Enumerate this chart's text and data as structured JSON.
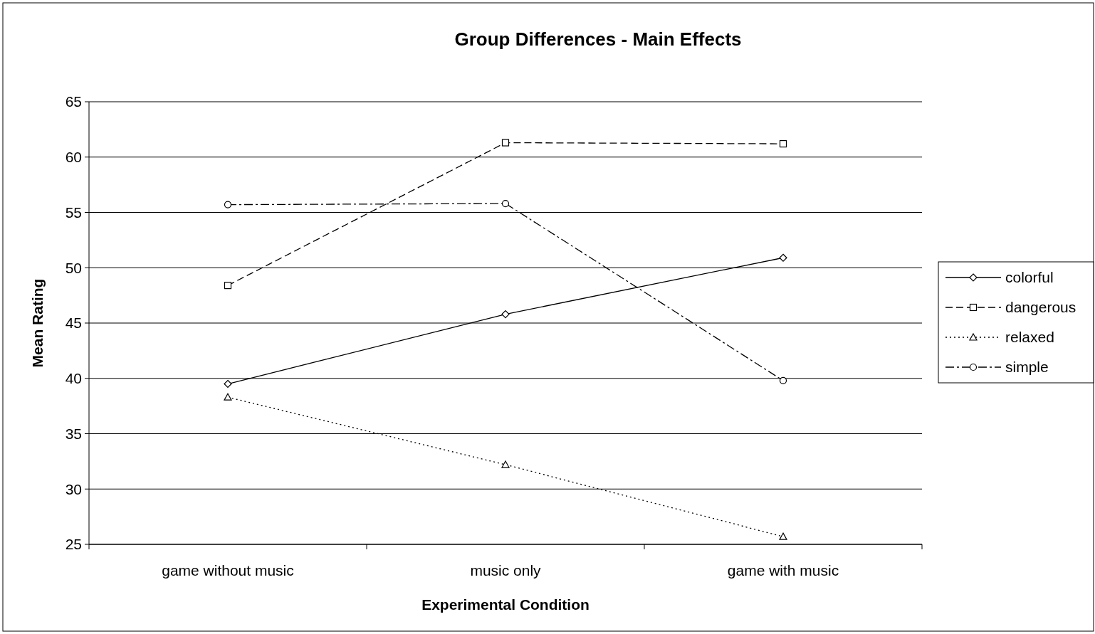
{
  "chart_data": {
    "type": "line",
    "title": "Group Differences - Main Effects",
    "xlabel": "Experimental Condition",
    "ylabel": "Mean Rating",
    "categories": [
      "game without music",
      "music only",
      "game with music"
    ],
    "series": [
      {
        "name": "colorful",
        "color": "#000000",
        "values": [
          39.5,
          45.8,
          50.9
        ],
        "marker": "diamond",
        "line_style": "solid"
      },
      {
        "name": "dangerous",
        "color": "#000000",
        "values": [
          48.4,
          61.3,
          61.2
        ],
        "marker": "square",
        "line_style": "dashed"
      },
      {
        "name": "relaxed",
        "color": "#000000",
        "values": [
          38.3,
          32.2,
          25.7
        ],
        "marker": "triangle",
        "line_style": "dotted"
      },
      {
        "name": "simple",
        "color": "#000000",
        "values": [
          55.7,
          55.8,
          39.8
        ],
        "marker": "circle",
        "line_style": "dashdot"
      }
    ],
    "ylim": [
      25,
      65
    ],
    "yticks": [
      25,
      30,
      35,
      40,
      45,
      50,
      55,
      60,
      65
    ],
    "grid": "y",
    "legend": "right"
  }
}
